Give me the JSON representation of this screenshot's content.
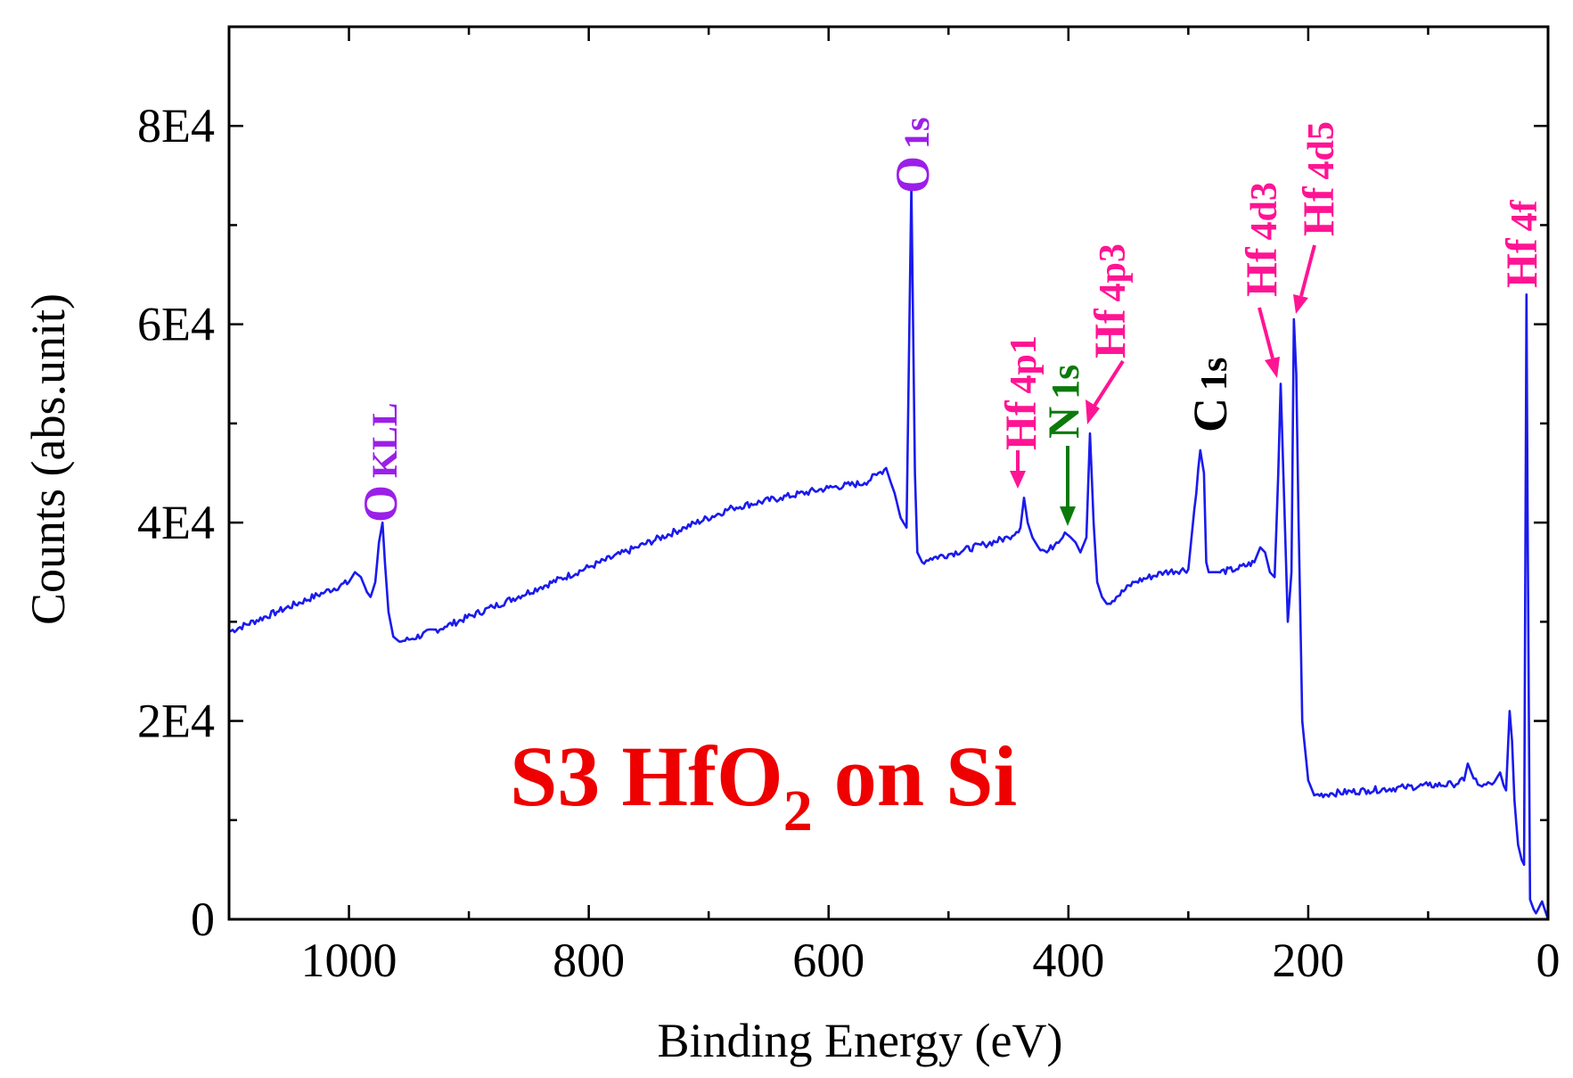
{
  "chart_data": {
    "type": "line",
    "title": "",
    "xlabel": "Binding Energy (eV)",
    "ylabel": "Counts (abs.unit)",
    "xlim": [
      1100,
      0
    ],
    "ylim": [
      0,
      90000
    ],
    "x_ticks": [
      1000,
      800,
      600,
      400,
      200,
      0
    ],
    "x_tick_labels": [
      "1000",
      "800",
      "600",
      "400",
      "200",
      "0"
    ],
    "y_ticks": [
      0,
      20000,
      40000,
      60000,
      80000
    ],
    "y_tick_labels": [
      "0",
      "2E4",
      "4E4",
      "6E4",
      "8E4"
    ],
    "series": [
      {
        "name": "S3 HfO2 on Si",
        "color": "#1a1aee",
        "x": [
          1100,
          1060,
          1020,
          1000,
          995,
          990,
          985,
          982,
          978,
          975,
          972,
          970,
          967,
          963,
          958,
          950,
          920,
          880,
          840,
          800,
          760,
          720,
          680,
          640,
          600,
          570,
          560,
          552,
          548,
          545,
          540,
          535,
          531,
          528,
          526,
          522,
          515,
          500,
          470,
          450,
          440,
          437,
          434,
          430,
          425,
          418,
          410,
          403,
          398,
          394,
          390,
          385,
          382,
          379,
          376,
          372,
          368,
          360,
          345,
          320,
          300,
          290,
          287,
          285,
          283,
          280,
          275,
          260,
          245,
          240,
          236,
          232,
          228,
          225,
          223,
          220,
          217,
          214,
          212,
          210,
          208,
          205,
          200,
          195,
          180,
          150,
          120,
          100,
          80,
          70,
          67,
          62,
          55,
          45,
          40,
          37,
          35,
          32,
          30,
          28,
          25,
          22,
          20,
          18,
          17,
          15,
          12,
          10,
          5,
          0
        ],
        "y": [
          29000,
          31000,
          33000,
          34000,
          35000,
          34500,
          33000,
          32500,
          34000,
          38000,
          40000,
          36000,
          31000,
          28500,
          28000,
          28200,
          29500,
          31500,
          33500,
          35500,
          37500,
          39500,
          41500,
          42500,
          43500,
          44000,
          44800,
          45500,
          44000,
          43000,
          40500,
          39500,
          74000,
          45000,
          37000,
          36000,
          36400,
          36800,
          37800,
          38500,
          39500,
          42500,
          40000,
          38500,
          37500,
          37000,
          38000,
          39000,
          38500,
          38000,
          37000,
          38500,
          49000,
          40000,
          34000,
          32500,
          31800,
          32500,
          34000,
          35000,
          35300,
          47300,
          45000,
          36000,
          35000,
          35000,
          35000,
          35300,
          36000,
          37500,
          37000,
          35000,
          34500,
          45000,
          54000,
          42000,
          30000,
          35000,
          60500,
          55000,
          40000,
          20000,
          14000,
          12500,
          12700,
          13000,
          13300,
          13500,
          13600,
          14000,
          15700,
          14200,
          13400,
          13800,
          14800,
          13500,
          13000,
          21000,
          18000,
          12000,
          7500,
          6000,
          5500,
          63000,
          40000,
          2000,
          1000,
          600,
          1800,
          0
        ]
      }
    ],
    "annotations": [
      {
        "text": "O KLL",
        "x": 972,
        "color": "#9b1fe8"
      },
      {
        "text": "O 1s",
        "x": 531,
        "color": "#9b1fe8"
      },
      {
        "text": "Hf 4p1",
        "x": 437,
        "color": "#ff1493"
      },
      {
        "text": "N 1s",
        "x": 398,
        "color": "#0b7a0b"
      },
      {
        "text": "Hf 4p3",
        "x": 380,
        "color": "#ff1493"
      },
      {
        "text": "C 1s",
        "x": 285,
        "color": "#000000"
      },
      {
        "text": "Hf 4d3",
        "x": 223,
        "color": "#ff1493"
      },
      {
        "text": "Hf 4d5",
        "x": 212,
        "color": "#ff1493"
      },
      {
        "text": "Hf 4f",
        "x": 17,
        "color": "#ff1493"
      }
    ]
  },
  "labels": {
    "peak_o_kll": {
      "main": "O",
      "sub": "KLL"
    },
    "peak_o_1s": {
      "main": "O",
      "sub": "1s"
    },
    "peak_hf_4p1": {
      "main": "Hf",
      "sub": "4p1"
    },
    "peak_n_1s": {
      "main": "N",
      "sub": "1s"
    },
    "peak_hf_4p3": {
      "main": "Hf",
      "sub": "4p3"
    },
    "peak_c_1s": {
      "main": "C",
      "sub": "1s"
    },
    "peak_hf_4d3": {
      "main": "Hf",
      "sub": "4d3"
    },
    "peak_hf_4d5": {
      "main": "Hf",
      "sub": "4d5"
    },
    "peak_hf_4f": {
      "main": "Hf",
      "sub": "4f"
    }
  },
  "sample_label": {
    "prefix": "S3  HfO",
    "subscript": "2",
    "suffix": " on Si",
    "color": "#ee0000"
  }
}
